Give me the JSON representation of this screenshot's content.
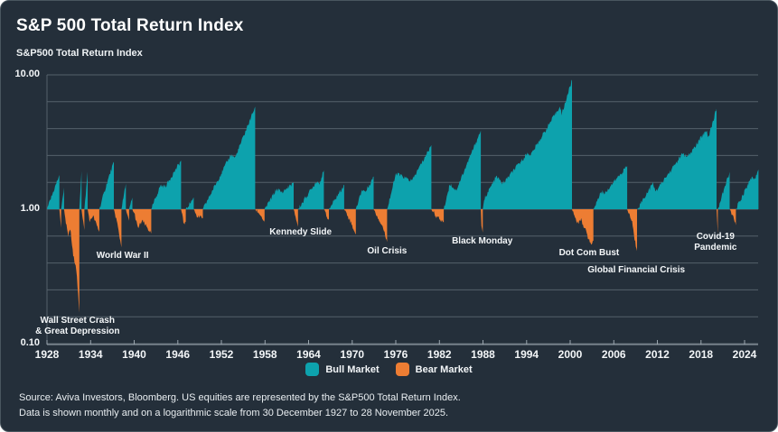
{
  "header": {
    "title": "S&P 500 Total Return Index",
    "subtitle": "S&P500 Total Return Index"
  },
  "footer": {
    "source_line1": "Source: Aviva Investors, Bloomberg. US equities are represented by the S&P500 Total Return Index.",
    "source_line2": "Data is shown monthly and on a logarithmic scale from 30 December 1927 to 28 November 2025."
  },
  "legend": [
    {
      "label": "Bull Market",
      "color": "#0DA2AD"
    },
    {
      "label": "Bear Market",
      "color": "#ED7D33"
    }
  ],
  "chart_data": {
    "type": "area",
    "title": "S&P 500 Total Return Index",
    "ylabel": "S&P500 Total Return Index",
    "y_scale": "log",
    "ylim": [
      0.1,
      10
    ],
    "baseline": 1.0,
    "grid": "horizontal",
    "legend_position": "bottom-center",
    "series_unit": "growth multiple within each market phase (each phase rebased to 1.0, monthly data, 30 Dec 1927 - 28 Nov 2025)",
    "y_ticks": [
      {
        "value": 10,
        "label": "10.00"
      },
      {
        "value": 1,
        "label": "1.00"
      },
      {
        "value": 0.1,
        "label": "0.10"
      }
    ],
    "x_ticks": [
      1928,
      1934,
      1940,
      1946,
      1952,
      1958,
      1964,
      1970,
      1976,
      1982,
      1988,
      1994,
      2000,
      2006,
      2012,
      2018,
      2024
    ],
    "x_range": [
      1928,
      2025.92
    ],
    "colors": {
      "bull": "#0DA2AD",
      "bear": "#ED7D33",
      "background": "#242F3A",
      "gridline": "#55616B",
      "axis": "#9AA5AE",
      "text": "#FFFFFF"
    },
    "annotations": [
      {
        "label": "Wall Street Crash\n& Great Depression",
        "year": 1932.2,
        "value": 0.134
      },
      {
        "label": "World War II",
        "year": 1938.4,
        "value": 0.45
      },
      {
        "label": "Kennedy Slide",
        "year": 1962.9,
        "value": 0.67
      },
      {
        "label": "Oil Crisis",
        "year": 1974.8,
        "value": 0.48
      },
      {
        "label": "Black Monday",
        "year": 1987.9,
        "value": 0.57
      },
      {
        "label": "Dot Com Bust",
        "year": 2002.6,
        "value": 0.47
      },
      {
        "label": "Global Financial Crisis",
        "year": 2009.1,
        "value": 0.35
      },
      {
        "label": "Covid-19 Pandemic",
        "year": 2020.0,
        "value": 0.565
      }
    ],
    "segments": [
      {
        "phase": "bull",
        "points": [
          [
            1928.0,
            1
          ],
          [
            1929.7,
            1.8
          ]
        ]
      },
      {
        "phase": "bear",
        "points": [
          [
            1929.7,
            1
          ],
          [
            1929.95,
            0.73
          ]
        ]
      },
      {
        "phase": "bull",
        "points": [
          [
            1929.95,
            1
          ],
          [
            1930.35,
            1.45
          ]
        ]
      },
      {
        "phase": "bear",
        "points": [
          [
            1930.35,
            1
          ],
          [
            1930.9,
            0.62
          ],
          [
            1931.2,
            0.72
          ],
          [
            1931.6,
            0.45
          ],
          [
            1932.0,
            0.38
          ],
          [
            1932.45,
            0.17
          ]
        ]
      },
      {
        "phase": "bull",
        "points": [
          [
            1932.45,
            1
          ],
          [
            1932.75,
            1.92
          ]
        ]
      },
      {
        "phase": "bear",
        "points": [
          [
            1932.75,
            1
          ],
          [
            1933.15,
            0.7
          ]
        ]
      },
      {
        "phase": "bull",
        "points": [
          [
            1933.15,
            1
          ],
          [
            1933.6,
            1.9
          ]
        ]
      },
      {
        "phase": "bear",
        "points": [
          [
            1933.6,
            1
          ],
          [
            1933.9,
            0.8
          ],
          [
            1934.3,
            0.9
          ],
          [
            1935.2,
            0.68
          ]
        ]
      },
      {
        "phase": "bull",
        "points": [
          [
            1935.2,
            1
          ],
          [
            1936.3,
            1.6
          ],
          [
            1937.2,
            2.25
          ]
        ]
      },
      {
        "phase": "bear",
        "points": [
          [
            1937.2,
            1
          ],
          [
            1937.6,
            0.82
          ],
          [
            1938.25,
            0.52
          ]
        ]
      },
      {
        "phase": "bull",
        "points": [
          [
            1938.25,
            1
          ],
          [
            1938.85,
            1.55
          ]
        ]
      },
      {
        "phase": "bear",
        "points": [
          [
            1938.85,
            1
          ],
          [
            1939.3,
            0.82
          ]
        ]
      },
      {
        "phase": "bull",
        "points": [
          [
            1939.3,
            1
          ],
          [
            1939.75,
            1.22
          ]
        ]
      },
      {
        "phase": "bear",
        "points": [
          [
            1939.75,
            1
          ],
          [
            1940.1,
            0.9
          ],
          [
            1940.5,
            0.72
          ],
          [
            1941.1,
            0.82
          ],
          [
            1942.35,
            0.66
          ]
        ]
      },
      {
        "phase": "bull",
        "points": [
          [
            1942.35,
            1
          ],
          [
            1943.6,
            1.5
          ],
          [
            1944.3,
            1.48
          ],
          [
            1946.45,
            2.3
          ]
        ]
      },
      {
        "phase": "bear",
        "points": [
          [
            1946.45,
            1
          ],
          [
            1946.8,
            0.79
          ],
          [
            1947.1,
            0.8
          ]
        ]
      },
      {
        "phase": "bull",
        "points": [
          [
            1947.1,
            1
          ],
          [
            1948.2,
            1.22
          ]
        ]
      },
      {
        "phase": "bear",
        "points": [
          [
            1948.2,
            1
          ],
          [
            1948.7,
            0.88
          ],
          [
            1949.45,
            0.86
          ]
        ]
      },
      {
        "phase": "bull",
        "points": [
          [
            1949.45,
            1
          ],
          [
            1953.3,
            2.55
          ],
          [
            1953.9,
            2.42
          ],
          [
            1956.65,
            5.8
          ]
        ]
      },
      {
        "phase": "bear",
        "points": [
          [
            1956.65,
            1
          ],
          [
            1957.3,
            0.92
          ],
          [
            1957.95,
            0.8
          ]
        ]
      },
      {
        "phase": "bull",
        "points": [
          [
            1957.95,
            1
          ],
          [
            1959.65,
            1.42
          ],
          [
            1960.3,
            1.33
          ],
          [
            1961.95,
            1.58
          ]
        ]
      },
      {
        "phase": "bear",
        "points": [
          [
            1961.95,
            1
          ],
          [
            1962.55,
            0.74
          ]
        ]
      },
      {
        "phase": "bull",
        "points": [
          [
            1962.55,
            1
          ],
          [
            1965.1,
            1.62
          ],
          [
            1965.5,
            1.56
          ],
          [
            1966.1,
            1.95
          ]
        ]
      },
      {
        "phase": "bear",
        "points": [
          [
            1966.1,
            1
          ],
          [
            1966.8,
            0.83
          ]
        ]
      },
      {
        "phase": "bull",
        "points": [
          [
            1966.8,
            1
          ],
          [
            1968.9,
            1.52
          ]
        ]
      },
      {
        "phase": "bear",
        "points": [
          [
            1968.9,
            1
          ],
          [
            1969.6,
            0.85
          ],
          [
            1970.5,
            0.65
          ]
        ]
      },
      {
        "phase": "bull",
        "points": [
          [
            1970.5,
            1
          ],
          [
            1971.35,
            1.4
          ],
          [
            1971.85,
            1.35
          ],
          [
            1972.95,
            1.75
          ]
        ]
      },
      {
        "phase": "bear",
        "points": [
          [
            1972.95,
            1
          ],
          [
            1973.9,
            0.8
          ],
          [
            1974.25,
            0.73
          ],
          [
            1974.8,
            0.57
          ]
        ]
      },
      {
        "phase": "bull",
        "points": [
          [
            1974.8,
            1
          ],
          [
            1976.05,
            1.85
          ],
          [
            1978.2,
            1.62
          ],
          [
            1980.9,
            3.0
          ]
        ]
      },
      {
        "phase": "bear",
        "points": [
          [
            1980.9,
            1
          ],
          [
            1981.7,
            0.87
          ],
          [
            1982.6,
            0.8
          ]
        ]
      },
      {
        "phase": "bull",
        "points": [
          [
            1982.6,
            1
          ],
          [
            1983.45,
            1.55
          ],
          [
            1984.3,
            1.38
          ],
          [
            1987.7,
            3.85
          ]
        ]
      },
      {
        "phase": "bear",
        "points": [
          [
            1987.7,
            1
          ],
          [
            1987.8,
            0.74
          ],
          [
            1987.98,
            0.67
          ]
        ]
      },
      {
        "phase": "bull",
        "points": [
          [
            1987.98,
            1
          ],
          [
            1988.25,
            1.22
          ],
          [
            1989.85,
            1.75
          ],
          [
            1990.75,
            1.55
          ],
          [
            1994.1,
            2.6
          ],
          [
            1994.6,
            2.55
          ],
          [
            1998.55,
            5.8
          ],
          [
            1998.85,
            5.1
          ],
          [
            2000.25,
            9.2
          ]
        ]
      },
      {
        "phase": "bear",
        "points": [
          [
            2000.25,
            1
          ],
          [
            2001.1,
            0.77
          ],
          [
            2001.45,
            0.85
          ],
          [
            2002.1,
            0.7
          ],
          [
            2002.8,
            0.55
          ],
          [
            2003.2,
            0.58
          ]
        ]
      },
      {
        "phase": "bull",
        "points": [
          [
            2003.2,
            1
          ],
          [
            2004.25,
            1.35
          ],
          [
            2004.75,
            1.32
          ],
          [
            2007.85,
            2.1
          ]
        ]
      },
      {
        "phase": "bear",
        "points": [
          [
            2007.85,
            1
          ],
          [
            2008.55,
            0.8
          ],
          [
            2008.8,
            0.62
          ],
          [
            2009.2,
            0.49
          ]
        ]
      },
      {
        "phase": "bull",
        "points": [
          [
            2009.2,
            1
          ],
          [
            2011.35,
            1.55
          ],
          [
            2011.8,
            1.36
          ],
          [
            2015.5,
            2.6
          ],
          [
            2016.15,
            2.42
          ],
          [
            2018.75,
            3.9
          ],
          [
            2019.0,
            3.4
          ],
          [
            2020.15,
            5.6
          ]
        ]
      },
      {
        "phase": "bear",
        "points": [
          [
            2020.15,
            1
          ],
          [
            2020.32,
            0.66
          ]
        ]
      },
      {
        "phase": "bull",
        "points": [
          [
            2020.32,
            1
          ],
          [
            2021.95,
            1.9
          ]
        ]
      },
      {
        "phase": "bear",
        "points": [
          [
            2021.95,
            1
          ],
          [
            2022.5,
            0.85
          ],
          [
            2022.8,
            0.76
          ]
        ]
      },
      {
        "phase": "bull",
        "points": [
          [
            2022.8,
            1
          ],
          [
            2025.05,
            1.78
          ],
          [
            2025.3,
            1.63
          ],
          [
            2025.92,
            1.97
          ]
        ]
      }
    ]
  }
}
